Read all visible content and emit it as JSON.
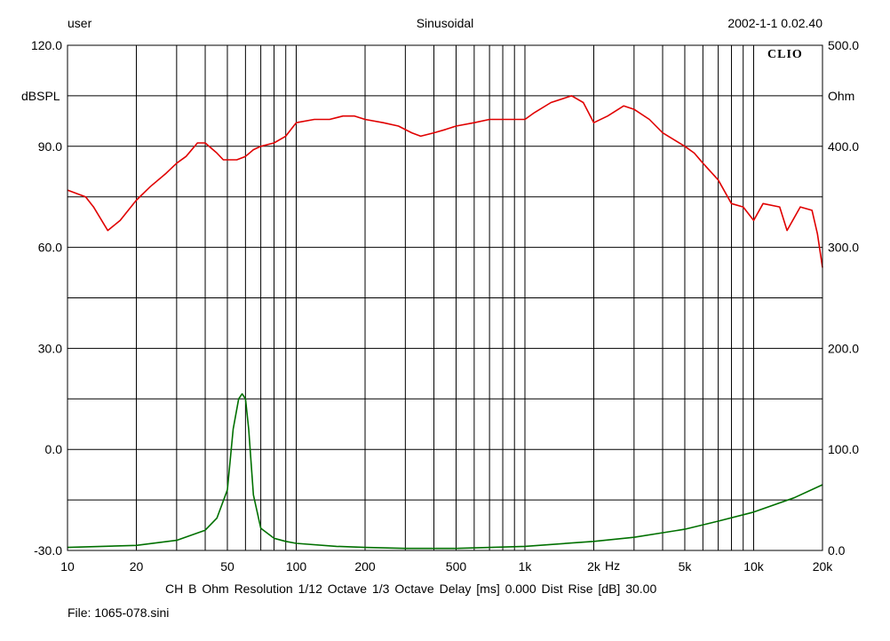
{
  "header": {
    "user": "user",
    "mode": "Sinusoidal",
    "datetime": "2002-1-1 0.02.40"
  },
  "brand": {
    "logo_text": "CLIO"
  },
  "footer": {
    "settings": "CH B   Ohm   Resolution 1/12 Octave   1/3 Octave   Delay [ms] 0.000   Dist Rise [dB] 30.00",
    "file": "File: 1065-078.sini"
  },
  "chart_data": {
    "type": "line",
    "x_scale": "log",
    "xlim": [
      10,
      20000
    ],
    "x_ticks": [
      {
        "v": 10,
        "label": "10"
      },
      {
        "v": 20,
        "label": "20"
      },
      {
        "v": 50,
        "label": "50"
      },
      {
        "v": 100,
        "label": "100"
      },
      {
        "v": 200,
        "label": "200"
      },
      {
        "v": 500,
        "label": "500"
      },
      {
        "v": 1000,
        "label": "1k"
      },
      {
        "v": 2000,
        "label": "2k"
      },
      {
        "v": 5000,
        "label": "5k"
      },
      {
        "v": 10000,
        "label": "10k"
      },
      {
        "v": 20000,
        "label": "20k"
      }
    ],
    "x_unit_label": "Hz",
    "left_axis": {
      "label": "dBSPL",
      "ylim": [
        -30,
        120
      ],
      "ticks": [
        {
          "v": 120,
          "label": "120.0"
        },
        {
          "v": 90,
          "label": "90.0"
        },
        {
          "v": 60,
          "label": "60.0"
        },
        {
          "v": 30,
          "label": "30.0"
        },
        {
          "v": 0,
          "label": "0.0"
        },
        {
          "v": -30,
          "label": "-30.0"
        }
      ]
    },
    "right_axis": {
      "label": "Ohm",
      "ylim": [
        0,
        500
      ],
      "ticks": [
        {
          "v": 500,
          "label": "500.0"
        },
        {
          "v": 400,
          "label": "400.0"
        },
        {
          "v": 300,
          "label": "300.0"
        },
        {
          "v": 200,
          "label": "200.0"
        },
        {
          "v": 100,
          "label": "100.0"
        },
        {
          "v": 0,
          "label": "0.0"
        }
      ]
    },
    "grid": true,
    "series": [
      {
        "axis": "left",
        "color": "#e00000",
        "x": [
          10,
          12,
          13,
          15,
          17,
          20,
          23,
          27,
          30,
          33,
          37,
          40,
          45,
          48,
          55,
          60,
          65,
          70,
          80,
          90,
          100,
          120,
          140,
          160,
          180,
          200,
          240,
          280,
          320,
          350,
          400,
          450,
          500,
          600,
          700,
          800,
          900,
          1000,
          1100,
          1300,
          1600,
          1800,
          2000,
          2300,
          2700,
          3000,
          3500,
          4000,
          5000,
          5500,
          6000,
          7000,
          8000,
          9000,
          10000,
          11000,
          13000,
          14000,
          16000,
          18000,
          19000,
          20000
        ],
        "values": [
          77,
          75,
          72,
          65,
          68,
          74,
          78,
          82,
          85,
          87,
          91,
          91,
          88,
          86,
          86,
          87,
          89,
          90,
          91,
          93,
          97,
          98,
          98,
          99,
          99,
          98,
          97,
          96,
          94,
          93,
          94,
          95,
          96,
          97,
          98,
          98,
          98,
          98,
          100,
          103,
          105,
          103,
          97,
          99,
          102,
          101,
          98,
          94,
          90,
          88,
          85,
          80,
          73,
          72,
          68,
          73,
          72,
          65,
          72,
          71,
          64,
          54
        ]
      },
      {
        "axis": "right",
        "color": "#007000",
        "x": [
          10,
          20,
          30,
          40,
          45,
          50,
          53,
          56,
          58,
          60,
          62,
          65,
          70,
          80,
          90,
          100,
          150,
          200,
          300,
          500,
          1000,
          2000,
          3000,
          5000,
          7000,
          10000,
          15000,
          20000
        ],
        "values": [
          3,
          5,
          10,
          20,
          32,
          60,
          120,
          150,
          155,
          150,
          120,
          55,
          22,
          12,
          9,
          7,
          4,
          3,
          2,
          2,
          4,
          9,
          13,
          21,
          29,
          38,
          52,
          65
        ]
      }
    ]
  }
}
